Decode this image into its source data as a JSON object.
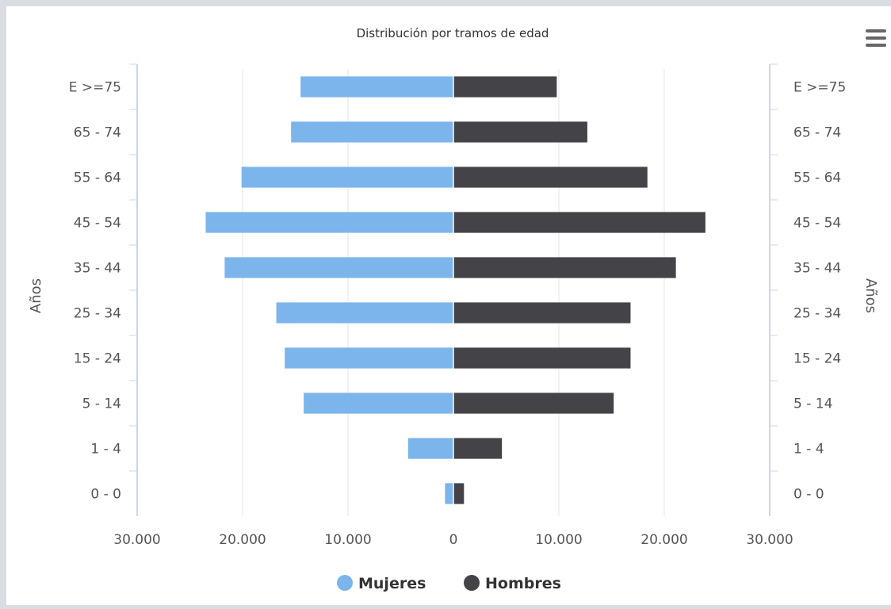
{
  "chart_data": {
    "type": "bar",
    "orientation": "horizontal",
    "title": "Distribución por tramos de edad",
    "categories": [
      "0 - 0",
      "1 - 4",
      "5 - 14",
      "15 - 24",
      "25 - 34",
      "35 - 44",
      "45 - 54",
      "55 - 64",
      "65 - 74",
      "E >=75"
    ],
    "series": [
      {
        "name": "Mujeres",
        "color": "#7cb5ec",
        "values": [
          800,
          4300,
          14200,
          16000,
          16800,
          21700,
          23500,
          20100,
          15400,
          14500
        ]
      },
      {
        "name": "Hombres",
        "color": "#434348",
        "values": [
          1000,
          4600,
          15200,
          16800,
          16800,
          21100,
          23900,
          18400,
          12700,
          9800
        ]
      }
    ],
    "xlim": [
      -30000,
      30000
    ],
    "x_ticks": [
      "30.000",
      "20.000",
      "10.000",
      "0",
      "10.000",
      "20.000",
      "30.000"
    ],
    "ylabel_left": "Años",
    "ylabel_right": "Años",
    "grid": true,
    "legend": "bottom-center"
  },
  "menu_icon": "hamburger-menu-icon"
}
